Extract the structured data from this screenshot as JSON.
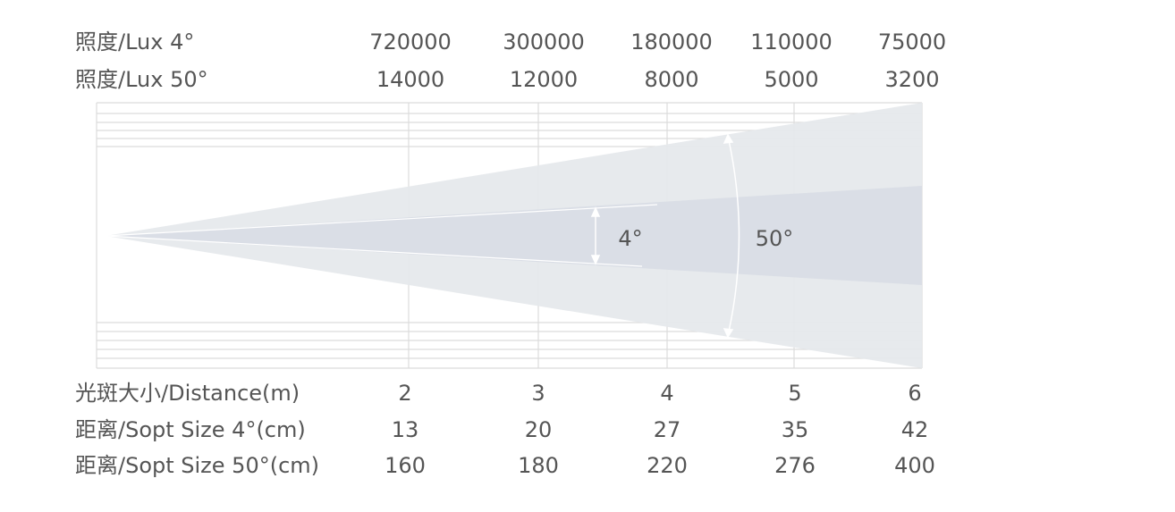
{
  "top_rows": [
    {
      "label": "照度/Lux 4°",
      "values": [
        720000,
        300000,
        180000,
        110000,
        75000
      ]
    },
    {
      "label": "照度/Lux 50°",
      "values": [
        14000,
        12000,
        8000,
        5000,
        3200
      ]
    }
  ],
  "bottom_rows": [
    {
      "label": "光斑大小/Distance(m)",
      "values": [
        2,
        3,
        4,
        5,
        6
      ]
    },
    {
      "label": "距离/Sopt Size 4°(cm)",
      "values": [
        13,
        20,
        27,
        35,
        42
      ]
    },
    {
      "label": "距离/Sopt Size 50°(cm)",
      "values": [
        160,
        180,
        220,
        276,
        400
      ]
    }
  ],
  "beam_labels": [
    "4°",
    "50°"
  ]
}
